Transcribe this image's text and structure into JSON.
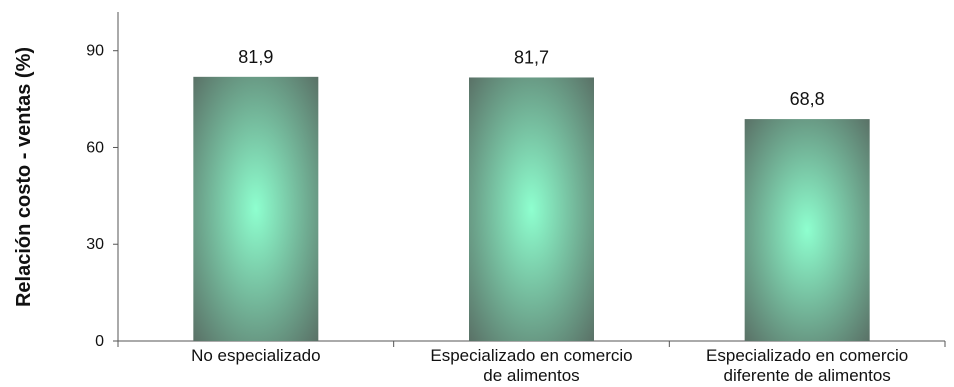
{
  "chart_data": {
    "type": "bar",
    "categories": [
      [
        "No especializado"
      ],
      [
        "Especializado en comercio",
        "de alimentos"
      ],
      [
        "Especializado en comercio",
        "diferente de alimentos"
      ]
    ],
    "values": [
      81.9,
      81.7,
      68.8
    ],
    "value_labels": [
      "81,9",
      "81,7",
      "68,8"
    ],
    "ylabel": "Relación costo - ventas (%)",
    "ylim": [
      0,
      102
    ],
    "yticks": [
      0,
      30,
      60,
      90
    ],
    "grid": false,
    "legend": "none",
    "colors": {
      "bar_center": "#8effcf",
      "bar_edge": "#5a7267",
      "axis": "#555555"
    }
  }
}
